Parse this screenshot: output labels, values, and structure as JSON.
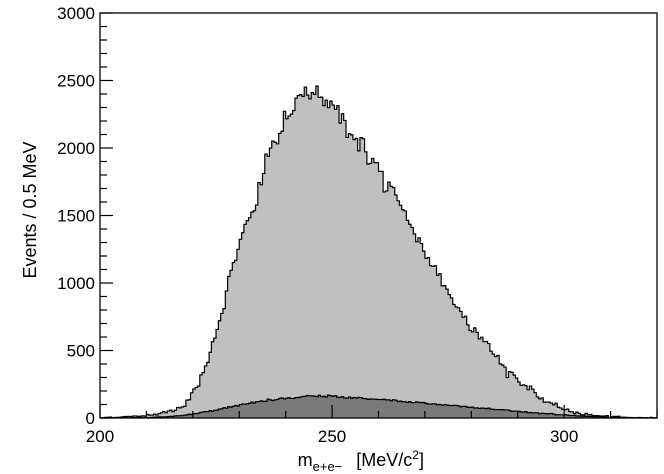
{
  "chart_data": {
    "type": "area",
    "title": "",
    "xlabel": {
      "main": "m",
      "subscript": "e+e−",
      "units_before": "[MeV/c",
      "units_sup": "2",
      "units_after": "]"
    },
    "ylabel": "Events / 0.5 MeV",
    "xlim": [
      200,
      320
    ],
    "ylim": [
      0,
      3000
    ],
    "x_ticks": [
      200,
      250,
      300
    ],
    "y_ticks": [
      0,
      500,
      1000,
      1500,
      2000,
      2500,
      3000
    ],
    "bin_width": 0.5,
    "grid": false,
    "legend": "none",
    "colors": {
      "total_fill": "#c0c0c0",
      "background_fill": "#7a7a7a",
      "line": "#000000"
    },
    "series": [
      {
        "role": "total",
        "shape_points": [
          [
            200,
            3
          ],
          [
            208,
            12
          ],
          [
            212,
            28
          ],
          [
            216,
            60
          ],
          [
            218,
            95
          ],
          [
            220,
            180
          ],
          [
            222,
            310
          ],
          [
            224,
            520
          ],
          [
            226,
            760
          ],
          [
            228,
            1040
          ],
          [
            230,
            1280
          ],
          [
            232,
            1450
          ],
          [
            234,
            1640
          ],
          [
            236,
            1950
          ],
          [
            238,
            2060
          ],
          [
            240,
            2200
          ],
          [
            242,
            2310
          ],
          [
            244,
            2380
          ],
          [
            246,
            2420
          ],
          [
            248,
            2400
          ],
          [
            250,
            2320
          ],
          [
            252,
            2220
          ],
          [
            254,
            2120
          ],
          [
            256,
            2030
          ],
          [
            258,
            1930
          ],
          [
            260,
            1830
          ],
          [
            262,
            1720
          ],
          [
            264,
            1610
          ],
          [
            266,
            1480
          ],
          [
            268,
            1330
          ],
          [
            270,
            1230
          ],
          [
            272,
            1110
          ],
          [
            274,
            990
          ],
          [
            276,
            880
          ],
          [
            278,
            780
          ],
          [
            280,
            690
          ],
          [
            282,
            600
          ],
          [
            284,
            510
          ],
          [
            286,
            420
          ],
          [
            288,
            350
          ],
          [
            290,
            280
          ],
          [
            292,
            230
          ],
          [
            294,
            170
          ],
          [
            296,
            125
          ],
          [
            298,
            90
          ],
          [
            300,
            65
          ],
          [
            302,
            45
          ],
          [
            304,
            30
          ],
          [
            306,
            20
          ],
          [
            310,
            9
          ],
          [
            314,
            4
          ],
          [
            320,
            2
          ]
        ]
      },
      {
        "role": "background",
        "shape_points": [
          [
            200,
            0
          ],
          [
            210,
            3
          ],
          [
            215,
            10
          ],
          [
            220,
            28
          ],
          [
            225,
            60
          ],
          [
            230,
            95
          ],
          [
            235,
            125
          ],
          [
            240,
            145
          ],
          [
            245,
            160
          ],
          [
            250,
            160
          ],
          [
            255,
            150
          ],
          [
            260,
            138
          ],
          [
            265,
            125
          ],
          [
            270,
            110
          ],
          [
            275,
            95
          ],
          [
            280,
            80
          ],
          [
            285,
            65
          ],
          [
            290,
            50
          ],
          [
            295,
            35
          ],
          [
            300,
            22
          ],
          [
            305,
            12
          ],
          [
            310,
            5
          ],
          [
            315,
            2
          ],
          [
            320,
            0
          ]
        ]
      }
    ]
  }
}
